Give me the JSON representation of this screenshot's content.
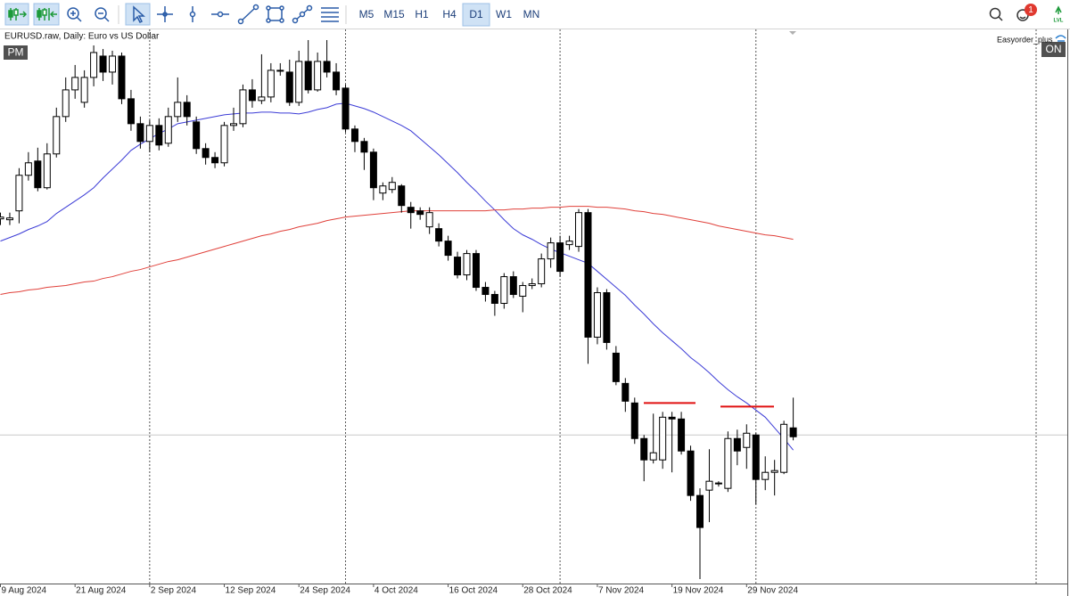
{
  "toolbar": {
    "timeframes": [
      {
        "label": "M5",
        "active": false
      },
      {
        "label": "M15",
        "active": false
      },
      {
        "label": "H1",
        "active": false
      },
      {
        "label": "H4",
        "active": false
      },
      {
        "label": "D1",
        "active": true
      },
      {
        "label": "W1",
        "active": false
      },
      {
        "label": "MN",
        "active": false
      }
    ],
    "notification_count": 1,
    "level_badge": "LVL"
  },
  "indicators": {
    "pm": "PM",
    "on": "ON",
    "expert": "Easyorder_plus"
  },
  "chart_data": {
    "type": "candlestick",
    "title": "EURUSD.raw, Daily:  Euro vs US Dollar",
    "categories": [
      "9 Aug 2024",
      null,
      null,
      null,
      null,
      null,
      null,
      null,
      "21 Aug 2024",
      null,
      null,
      null,
      null,
      null,
      null,
      null,
      "2 Sep 2024",
      null,
      null,
      null,
      null,
      null,
      null,
      null,
      "12 Sep 2024",
      null,
      null,
      null,
      null,
      null,
      null,
      null,
      "24 Sep 2024",
      null,
      null,
      null,
      null,
      null,
      null,
      null,
      "4 Oct 2024",
      null,
      null,
      null,
      null,
      null,
      null,
      null,
      "16 Oct 2024",
      null,
      null,
      null,
      null,
      null,
      null,
      null,
      "28 Oct 2024",
      null,
      null,
      null,
      null,
      null,
      null,
      null,
      "7 Nov 2024",
      null,
      null,
      null,
      null,
      null,
      null,
      null,
      "19 Nov 2024",
      null,
      null,
      null,
      null,
      null,
      null,
      null,
      "29 Nov 2024",
      null,
      null,
      null,
      null,
      null
    ],
    "open": [
      1.09325,
      1.0931,
      1.0946,
      1.1006,
      1.103,
      1.0985,
      1.1042,
      1.1105,
      1.115,
      1.1129,
      1.1171,
      1.1207,
      1.118,
      1.1207,
      1.1135,
      1.1093,
      1.1063,
      1.109,
      1.106,
      1.1105,
      1.1129,
      1.1096,
      1.1051,
      1.1036,
      1.1027,
      1.109,
      1.1093,
      1.115,
      1.1132,
      1.1138,
      1.1183,
      1.118,
      1.1129,
      1.1198,
      1.115,
      1.1198,
      1.118,
      1.1153,
      1.1084,
      1.1063,
      1.1045,
      1.0976,
      1.0982,
      1.0988,
      1.0952,
      1.0946,
      1.0919,
      1.0916,
      1.0895,
      1.0868,
      1.0838,
      1.0874,
      1.0817,
      1.0805,
      1.079,
      1.0835,
      1.0802,
      1.082,
      1.0823,
      1.0865,
      1.0892,
      1.0889,
      1.0886,
      1.0943,
      1.0733,
      1.0808,
      1.0706,
      1.0655,
      1.0622,
      1.0562,
      1.0526,
      1.0526,
      1.0598,
      1.0595,
      1.0541,
      1.0466,
      1.0475,
      1.0487,
      1.0478,
      1.0562,
      1.0547,
      1.0568,
      1.0493,
      1.0505,
      1.0505,
      1.058
    ],
    "high": [
      1.0943,
      1.0943,
      1.1018,
      1.1045,
      1.10525,
      1.106,
      1.112,
      1.1171,
      1.1192,
      1.1183,
      1.1225,
      1.1219,
      1.1216,
      1.1213,
      1.115,
      1.1105,
      1.1099,
      1.1102,
      1.112,
      1.1171,
      1.1141,
      1.1105,
      1.106,
      1.1045,
      1.1096,
      1.112,
      1.1159,
      1.1168,
      1.121,
      1.1195,
      1.1195,
      1.1201,
      1.1216,
      1.1234,
      1.1213,
      1.1234,
      1.1195,
      1.1159,
      1.109,
      1.1069,
      1.1051,
      1.0994,
      1.1003,
      1.0991,
      1.0961,
      1.0952,
      1.0952,
      1.0925,
      1.0904,
      1.0877,
      1.088,
      1.088,
      1.0826,
      1.0811,
      1.0841,
      1.0844,
      1.0826,
      1.0832,
      1.0874,
      1.0901,
      1.0904,
      1.0904,
      1.0949,
      1.0949,
      1.0817,
      1.0814,
      1.0718,
      1.0664,
      1.0631,
      1.0568,
      1.0604,
      1.0607,
      1.0607,
      1.0607,
      1.055,
      1.0478,
      1.0544,
      1.049,
      1.0574,
      1.0577,
      1.0586,
      1.0571,
      1.0532,
      1.0526,
      1.0592,
      1.0631
    ],
    "low": [
      1.0922,
      1.0922,
      1.0925,
      1.0997,
      1.0979,
      1.0982,
      1.1036,
      1.1096,
      1.1135,
      1.112,
      1.1156,
      1.1165,
      1.1159,
      1.1126,
      1.1081,
      1.1051,
      1.1045,
      1.1048,
      1.1054,
      1.1096,
      1.109,
      1.1042,
      1.1024,
      1.1018,
      1.1021,
      1.1081,
      1.1087,
      1.112,
      1.1126,
      1.1129,
      1.1174,
      1.1123,
      1.1123,
      1.1144,
      1.1147,
      1.1171,
      1.1141,
      1.1078,
      1.1045,
      1.1015,
      1.0964,
      1.0964,
      1.0976,
      1.0943,
      1.0916,
      1.0931,
      1.0907,
      1.0886,
      1.0862,
      1.0832,
      1.0829,
      1.0811,
      1.0793,
      1.0769,
      1.0781,
      1.0799,
      1.0775,
      1.0814,
      1.0817,
      1.085,
      1.0835,
      1.088,
      1.0877,
      1.0688,
      1.0721,
      1.0712,
      1.0652,
      1.0607,
      1.0553,
      1.049,
      1.052,
      1.0511,
      1.0505,
      1.0535,
      1.0457,
      1.0325,
      1.0421,
      1.0481,
      1.0472,
      1.0517,
      1.0511,
      1.0451,
      1.0475,
      1.0466,
      1.0502,
      1.0559
    ],
    "close": [
      1.09355,
      1.0934,
      1.1006,
      1.1027,
      1.0985,
      1.1042,
      1.1105,
      1.115,
      1.1171,
      1.1171,
      1.1213,
      1.118,
      1.1207,
      1.1135,
      1.1093,
      1.1063,
      1.109,
      1.1057,
      1.1105,
      1.1129,
      1.1105,
      1.1051,
      1.1036,
      1.1027,
      1.109,
      1.1093,
      1.115,
      1.1132,
      1.1138,
      1.1183,
      1.1183,
      1.1129,
      1.1198,
      1.115,
      1.1198,
      1.118,
      1.115,
      1.1084,
      1.1063,
      1.1045,
      1.0985,
      1.0988,
      1.0994,
      1.0955,
      1.0943,
      1.094,
      1.0943,
      1.0895,
      1.0871,
      1.0838,
      1.0874,
      1.0817,
      1.0805,
      1.079,
      1.0835,
      1.0805,
      1.082,
      1.0823,
      1.0865,
      1.0892,
      1.0844,
      1.0895,
      1.0943,
      1.0733,
      1.0808,
      1.0724,
      1.0658,
      1.0625,
      1.0562,
      1.0526,
      1.0538,
      1.0598,
      1.0595,
      1.0541,
      1.0466,
      1.0412,
      1.049,
      1.0487,
      1.0562,
      1.0541,
      1.0571,
      1.0493,
      1.0505,
      1.0508,
      1.0586,
      1.0565
    ],
    "overlays": [
      {
        "color": "#3b3bd6",
        "values": [
          1.0895,
          1.0901,
          1.0907,
          1.09145,
          1.09205,
          1.0928,
          1.09415,
          1.0952,
          1.09625,
          1.0973,
          1.0985,
          1.10015,
          1.10165,
          1.10315,
          1.1048,
          1.10585,
          1.10675,
          1.10765,
          1.1084,
          1.1093,
          1.1096,
          1.1099,
          1.1102,
          1.1105,
          1.1108,
          1.11095,
          1.1111,
          1.1111,
          1.11125,
          1.11125,
          1.1111,
          1.1111,
          1.11095,
          1.11125,
          1.1117,
          1.112,
          1.1126,
          1.11275,
          1.1123,
          1.11185,
          1.11125,
          1.1105,
          1.10975,
          1.109,
          1.1081,
          1.10675,
          1.1054,
          1.10405,
          1.10255,
          1.10105,
          1.0994,
          1.0979,
          1.09625,
          1.09475,
          1.0931,
          1.0916,
          1.09055,
          1.0898,
          1.0889,
          1.08815,
          1.08755,
          1.08695,
          1.08635,
          1.08575,
          1.0844,
          1.08305,
          1.0817,
          1.08035,
          1.0787,
          1.0772,
          1.07555,
          1.07405,
          1.0727,
          1.07135,
          1.06985,
          1.06865,
          1.0673,
          1.0658,
          1.06445,
          1.06325,
          1.0622,
          1.061,
          1.0598,
          1.058,
          1.0562,
          1.05425
        ]
      },
      {
        "color": "#e0403a",
        "values": [
          1.0805,
          1.0808,
          1.08095,
          1.08125,
          1.0814,
          1.0817,
          1.08185,
          1.082,
          1.0823,
          1.0826,
          1.08275,
          1.0832,
          1.0835,
          1.08395,
          1.0844,
          1.0847,
          1.08515,
          1.0856,
          1.08605,
          1.08635,
          1.0868,
          1.08725,
          1.0877,
          1.08815,
          1.0886,
          1.08905,
          1.0895,
          1.08995,
          1.0904,
          1.0907,
          1.09115,
          1.09145,
          1.0919,
          1.0922,
          1.0925,
          1.09295,
          1.09325,
          1.09355,
          1.0937,
          1.09385,
          1.094,
          1.09415,
          1.0943,
          1.09445,
          1.0946,
          1.0946,
          1.0946,
          1.0946,
          1.0946,
          1.0946,
          1.0946,
          1.0946,
          1.0946,
          1.09475,
          1.09475,
          1.0949,
          1.0949,
          1.09505,
          1.09505,
          1.0952,
          1.0952,
          1.09535,
          1.09535,
          1.09535,
          1.0952,
          1.0952,
          1.09505,
          1.0949,
          1.0946,
          1.09445,
          1.09415,
          1.094,
          1.0937,
          1.0934,
          1.0931,
          1.0928,
          1.0925,
          1.09205,
          1.09175,
          1.09145,
          1.09115,
          1.09085,
          1.09055,
          1.0904,
          1.0901,
          1.0898
        ]
      }
    ],
    "levels": [
      1.0622,
      1.0616
    ],
    "level_color": "#e01010",
    "bid": 1.0568,
    "ylim": [
      1.03175,
      1.1252
    ]
  }
}
